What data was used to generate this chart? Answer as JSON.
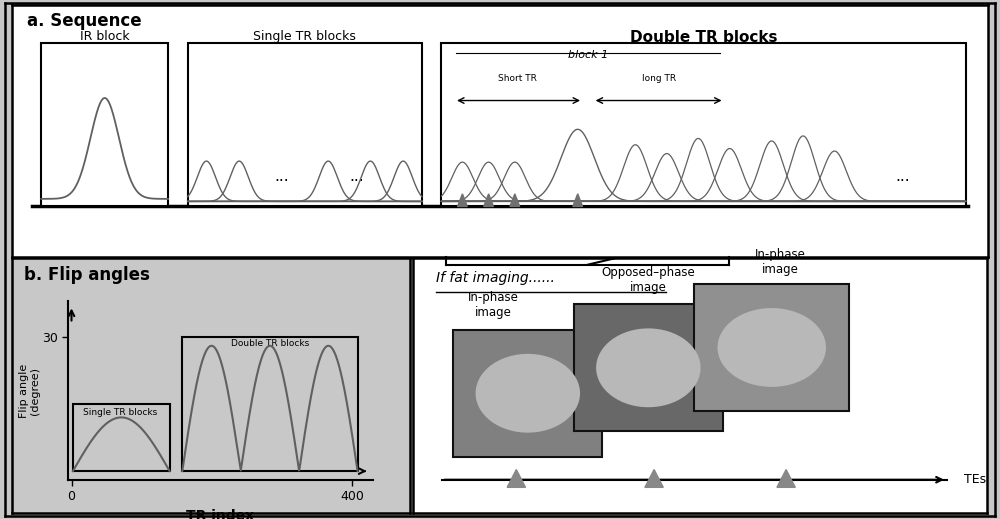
{
  "title_a": "a. Sequence",
  "title_b": "b. Flip angles",
  "ir_block_label": "IR block",
  "single_tr_label": "Single TR blocks",
  "double_tr_label": "Double TR blocks",
  "block1_label": "block 1",
  "short_tr_label": "Short TR",
  "long_tr_label": "long TR",
  "flip_ylabel": "Flip angle\n(degree)",
  "flip_xlabel": "TR index",
  "single_box_label": "Single TR blocks",
  "double_box_label": "Double TR blocks",
  "fat_title": "If fat imaging......",
  "label_ip1": "In-phase\nimage",
  "label_op": "Opposed–phase\nimage",
  "label_ip2": "In-phase\nimage",
  "tes_label": "TEs",
  "bg_gray": "#c8c8c8",
  "white": "#ffffff",
  "line_color": "#606060",
  "dark": "#333333",
  "block_highlight": "#d0d0d0"
}
